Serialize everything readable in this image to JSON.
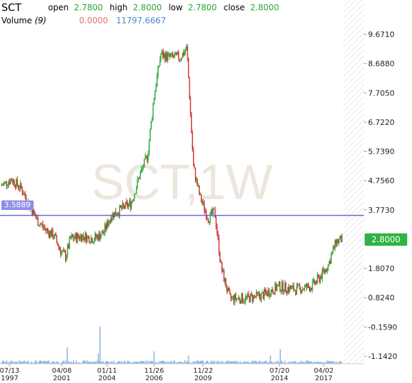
{
  "header": {
    "symbol": "SCT",
    "open_label": "open",
    "open_value": "2.7800",
    "high_label": "high",
    "high_value": "2.8000",
    "low_label": "low",
    "low_value": "2.7800",
    "close_label": "close",
    "close_value": "2.8000",
    "volume_label": "Volume",
    "volume_period": "(9)",
    "volume_value_1": "0.0000",
    "volume_value_2": "11797.6667"
  },
  "watermark": "SCT,1W",
  "colors": {
    "up": "#26a637",
    "down": "#d22a2a",
    "ma_line": "#5b5bd6",
    "current_price_tag": "#2fb344",
    "ma_tag": "#8f8fe8",
    "volume": "#8fb8e0"
  },
  "chart_data": {
    "type": "candlestick",
    "title": "",
    "y_ticks": [
      "9.6710",
      "8.6880",
      "7.7050",
      "6.7220",
      "5.7390",
      "4.7560",
      "3.7730",
      "1.8070",
      "0.8240",
      "-0.1590",
      "-1.1420"
    ],
    "y_range": [
      -1.5,
      10.2
    ],
    "x_ticks": [
      {
        "date": "07/13",
        "year": "1997",
        "t": 1997.53
      },
      {
        "date": "04/08",
        "year": "2001",
        "t": 2001.27
      },
      {
        "date": "01/11",
        "year": "2004",
        "t": 2004.03
      },
      {
        "date": "11/26",
        "year": "2006",
        "t": 2006.9
      },
      {
        "date": "11/22",
        "year": "2009",
        "t": 2009.89
      },
      {
        "date": "07/20",
        "year": "2014",
        "t": 2014.55
      },
      {
        "date": "04/02",
        "year": "2017",
        "t": 2017.25
      }
    ],
    "x_range": [
      1997.5,
      2019.7
    ],
    "last_price": "2.8000",
    "ma_value": "3.5889",
    "price_path": [
      [
        1997.6,
        4.6
      ],
      [
        1998.2,
        4.8
      ],
      [
        1998.8,
        4.5
      ],
      [
        1999.3,
        3.9
      ],
      [
        1999.8,
        3.4
      ],
      [
        2000.3,
        3.1
      ],
      [
        2000.8,
        2.9
      ],
      [
        2001.2,
        2.4
      ],
      [
        2001.5,
        2.2
      ],
      [
        2001.8,
        2.8
      ],
      [
        2002.5,
        2.9
      ],
      [
        2003.2,
        2.8
      ],
      [
        2003.8,
        3.0
      ],
      [
        2004.3,
        3.6
      ],
      [
        2004.9,
        3.8
      ],
      [
        2005.5,
        4.0
      ],
      [
        2006.0,
        4.9
      ],
      [
        2006.5,
        5.6
      ],
      [
        2006.9,
        7.6
      ],
      [
        2007.3,
        9.0
      ],
      [
        2007.8,
        8.9
      ],
      [
        2008.5,
        8.9
      ],
      [
        2008.9,
        9.2
      ],
      [
        2009.3,
        5.2
      ],
      [
        2009.7,
        4.2
      ],
      [
        2010.2,
        3.5
      ],
      [
        2010.6,
        3.7
      ],
      [
        2011.0,
        1.8
      ],
      [
        2011.5,
        0.8
      ],
      [
        2012.5,
        0.8
      ],
      [
        2013.5,
        0.9
      ],
      [
        2014.5,
        1.2
      ],
      [
        2015.5,
        1.1
      ],
      [
        2016.5,
        1.2
      ],
      [
        2017.0,
        1.5
      ],
      [
        2017.5,
        1.9
      ],
      [
        2018.0,
        2.7
      ],
      [
        2018.4,
        2.8
      ]
    ],
    "volume_spikes": [
      {
        "t": 2001.6,
        "v": 0.4
      },
      {
        "t": 2003.6,
        "v": 0.9
      },
      {
        "t": 2003.5,
        "v": 0.25
      },
      {
        "t": 2006.9,
        "v": 0.3
      },
      {
        "t": 2009.0,
        "v": 0.2
      },
      {
        "t": 2014.6,
        "v": 0.35
      },
      {
        "t": 2014.0,
        "v": 0.2
      }
    ]
  }
}
